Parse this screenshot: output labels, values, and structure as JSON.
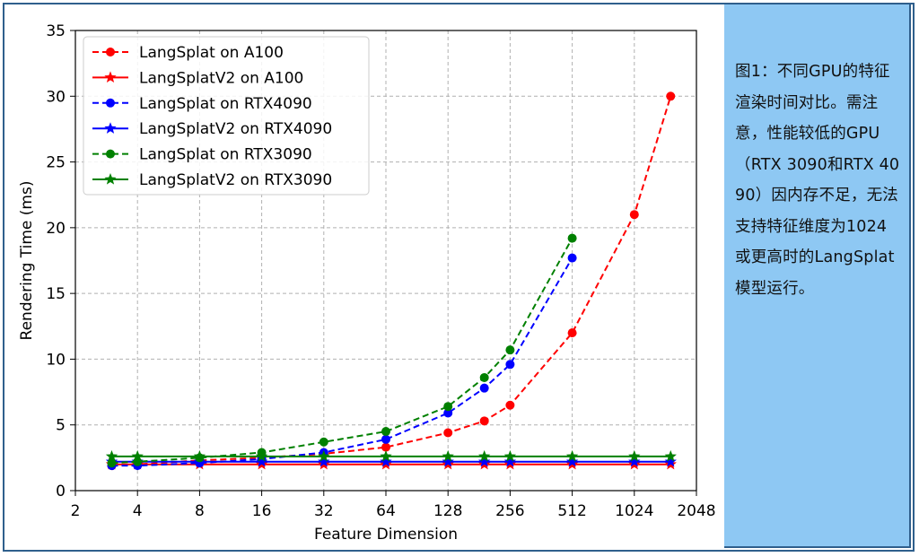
{
  "caption": "图1：不同GPU的特征渲染时间对比。需注意，性能较低的GPU（RTX 3090和RTX 4090）因内存不足，无法支持特征维度为1024或更高时的LangSplat模型运行。",
  "chart_data": {
    "type": "line",
    "xlabel": "Feature Dimension",
    "ylabel": "Rendering Time (ms)",
    "x_scale": "log2",
    "xlim": [
      2,
      2048
    ],
    "ylim": [
      0,
      35
    ],
    "x_ticks": [
      2,
      4,
      8,
      16,
      32,
      64,
      128,
      256,
      512,
      1024,
      2048
    ],
    "y_ticks": [
      0,
      5,
      10,
      15,
      20,
      25,
      30,
      35
    ],
    "grid": true,
    "legend_position": "top-left",
    "series": [
      {
        "name": "LangSplat on A100",
        "color": "#ff0000",
        "linestyle": "dashed",
        "marker": "circle",
        "x": [
          3,
          4,
          8,
          16,
          32,
          64,
          128,
          192,
          256,
          512,
          1024,
          1536
        ],
        "y": [
          1.9,
          2.0,
          2.3,
          2.5,
          2.8,
          3.3,
          4.4,
          5.3,
          6.5,
          12.0,
          21.0,
          30.0
        ]
      },
      {
        "name": "LangSplatV2 on A100",
        "color": "#ff0000",
        "linestyle": "solid",
        "marker": "star",
        "x": [
          3,
          4,
          8,
          16,
          32,
          64,
          128,
          192,
          256,
          512,
          1024,
          1536
        ],
        "y": [
          2.0,
          2.0,
          2.0,
          2.0,
          2.0,
          2.0,
          2.0,
          2.0,
          2.0,
          2.0,
          2.0,
          2.0
        ]
      },
      {
        "name": "LangSplat on RTX4090",
        "color": "#0000ff",
        "linestyle": "dashed",
        "marker": "circle",
        "x": [
          3,
          4,
          8,
          16,
          32,
          64,
          128,
          192,
          256,
          512
        ],
        "y": [
          1.9,
          1.9,
          2.1,
          2.4,
          2.9,
          3.9,
          5.9,
          7.8,
          9.6,
          17.7
        ]
      },
      {
        "name": "LangSplatV2 on RTX4090",
        "color": "#0000ff",
        "linestyle": "solid",
        "marker": "star",
        "x": [
          3,
          4,
          8,
          16,
          32,
          64,
          128,
          192,
          256,
          512,
          1024,
          1536
        ],
        "y": [
          2.2,
          2.2,
          2.2,
          2.2,
          2.2,
          2.2,
          2.2,
          2.2,
          2.2,
          2.2,
          2.2,
          2.2
        ]
      },
      {
        "name": "LangSplat on RTX3090",
        "color": "#008000",
        "linestyle": "dashed",
        "marker": "circle",
        "x": [
          3,
          4,
          8,
          16,
          32,
          64,
          128,
          192,
          256,
          512
        ],
        "y": [
          2.1,
          2.2,
          2.5,
          2.9,
          3.7,
          4.5,
          6.4,
          8.6,
          10.7,
          19.2
        ]
      },
      {
        "name": "LangSplatV2 on RTX3090",
        "color": "#008000",
        "linestyle": "solid",
        "marker": "star",
        "x": [
          3,
          4,
          8,
          16,
          32,
          64,
          128,
          192,
          256,
          512,
          1024,
          1536
        ],
        "y": [
          2.6,
          2.6,
          2.6,
          2.6,
          2.6,
          2.6,
          2.6,
          2.6,
          2.6,
          2.6,
          2.6,
          2.6
        ]
      }
    ]
  }
}
